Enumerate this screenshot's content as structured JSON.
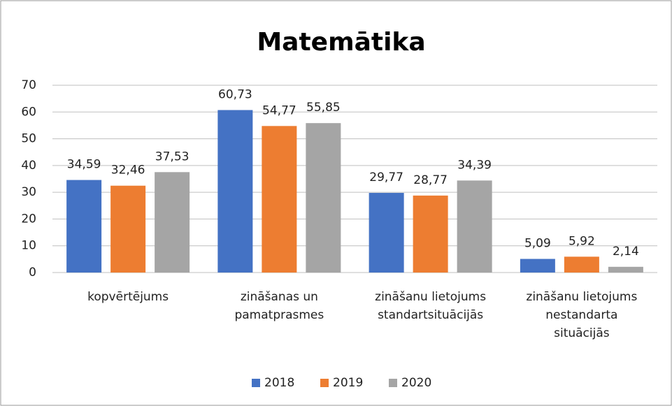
{
  "chart_data": {
    "type": "bar",
    "title": "Matemātika",
    "categories": [
      "kopvērtējums",
      "zināšanas un pamatprasmes",
      "zināšanu lietojums standartsituācijās",
      "zināšanu lietojums nestandarta situācijās"
    ],
    "series": [
      {
        "name": "2018",
        "color": "#4472c4",
        "values": [
          34.59,
          60.73,
          29.77,
          5.09
        ],
        "value_labels": [
          "34,59",
          "60,73",
          "29,77",
          "5,09"
        ]
      },
      {
        "name": "2019",
        "color": "#ed7d31",
        "values": [
          32.46,
          54.77,
          28.77,
          5.92
        ],
        "value_labels": [
          "32,46",
          "54,77",
          "28,77",
          "5,92"
        ]
      },
      {
        "name": "2020",
        "color": "#a5a5a5",
        "values": [
          37.53,
          55.85,
          34.39,
          2.14
        ],
        "value_labels": [
          "37,53",
          "55,85",
          "34,39",
          "2,14"
        ]
      }
    ],
    "ylim": [
      0,
      70
    ],
    "yticks": [
      0,
      10,
      20,
      30,
      40,
      50,
      60,
      70
    ],
    "grid": true,
    "legend": "bottom"
  }
}
